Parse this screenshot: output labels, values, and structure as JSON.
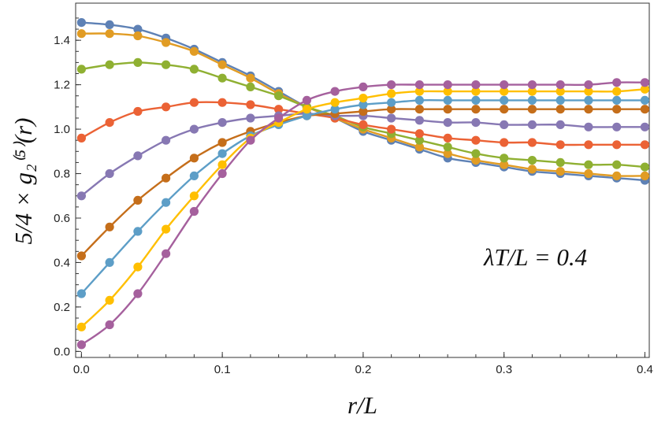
{
  "chart_data": {
    "type": "line",
    "xlabel": "r/L",
    "ylabel": "5/4 × g₂⁽⁵⁾(r)",
    "annotation": "λT/L = 0.4",
    "xlim": [
      -0.003,
      0.402
    ],
    "ylim": [
      -0.02,
      1.56
    ],
    "x_ticks": [
      "0.0",
      "0.1",
      "0.2",
      "0.3",
      "0.4"
    ],
    "y_ticks": [
      "0.0",
      "0.2",
      "0.4",
      "0.6",
      "0.8",
      "1.0",
      "1.2",
      "1.4"
    ],
    "grid": false,
    "x": [
      0.0,
      0.02,
      0.04,
      0.06,
      0.08,
      0.1,
      0.12,
      0.14,
      0.16,
      0.18,
      0.2,
      0.22,
      0.24,
      0.26,
      0.28,
      0.3,
      0.32,
      0.34,
      0.36,
      0.38,
      0.4
    ],
    "series": [
      {
        "color": "#5E81B5",
        "values": [
          1.48,
          1.47,
          1.45,
          1.41,
          1.36,
          1.3,
          1.24,
          1.17,
          1.1,
          1.05,
          0.99,
          0.95,
          0.91,
          0.87,
          0.85,
          0.83,
          0.81,
          0.8,
          0.79,
          0.78,
          0.77
        ]
      },
      {
        "color": "#E19C24",
        "values": [
          1.43,
          1.43,
          1.42,
          1.39,
          1.35,
          1.29,
          1.23,
          1.16,
          1.1,
          1.05,
          1.0,
          0.96,
          0.92,
          0.89,
          0.86,
          0.84,
          0.82,
          0.81,
          0.8,
          0.79,
          0.79
        ]
      },
      {
        "color": "#8FB032",
        "values": [
          1.27,
          1.29,
          1.3,
          1.29,
          1.27,
          1.23,
          1.19,
          1.15,
          1.1,
          1.06,
          1.01,
          0.98,
          0.95,
          0.92,
          0.89,
          0.87,
          0.86,
          0.85,
          0.84,
          0.84,
          0.83
        ]
      },
      {
        "color": "#EB6235",
        "values": [
          0.96,
          1.03,
          1.08,
          1.1,
          1.12,
          1.12,
          1.11,
          1.09,
          1.07,
          1.05,
          1.02,
          1.0,
          0.98,
          0.96,
          0.95,
          0.94,
          0.94,
          0.93,
          0.93,
          0.93,
          0.93
        ]
      },
      {
        "color": "#8778B3",
        "values": [
          0.7,
          0.8,
          0.88,
          0.95,
          1.0,
          1.03,
          1.05,
          1.06,
          1.07,
          1.06,
          1.06,
          1.05,
          1.04,
          1.03,
          1.03,
          1.02,
          1.02,
          1.02,
          1.01,
          1.01,
          1.01
        ]
      },
      {
        "color": "#C56E1A",
        "values": [
          0.43,
          0.56,
          0.68,
          0.78,
          0.87,
          0.94,
          0.99,
          1.03,
          1.06,
          1.07,
          1.08,
          1.09,
          1.09,
          1.09,
          1.09,
          1.09,
          1.09,
          1.09,
          1.09,
          1.09,
          1.09
        ]
      },
      {
        "color": "#5D9EC7",
        "values": [
          0.26,
          0.4,
          0.54,
          0.67,
          0.79,
          0.89,
          0.97,
          1.02,
          1.06,
          1.09,
          1.11,
          1.12,
          1.13,
          1.13,
          1.13,
          1.13,
          1.13,
          1.13,
          1.13,
          1.13,
          1.13
        ]
      },
      {
        "color": "#FFBF00",
        "values": [
          0.11,
          0.23,
          0.38,
          0.55,
          0.7,
          0.84,
          0.96,
          1.03,
          1.09,
          1.12,
          1.14,
          1.16,
          1.17,
          1.17,
          1.17,
          1.17,
          1.17,
          1.17,
          1.17,
          1.17,
          1.18
        ]
      },
      {
        "color": "#A5609D",
        "values": [
          0.03,
          0.12,
          0.26,
          0.44,
          0.63,
          0.8,
          0.95,
          1.05,
          1.13,
          1.17,
          1.19,
          1.2,
          1.2,
          1.2,
          1.2,
          1.2,
          1.2,
          1.2,
          1.2,
          1.21,
          1.21
        ]
      }
    ]
  }
}
